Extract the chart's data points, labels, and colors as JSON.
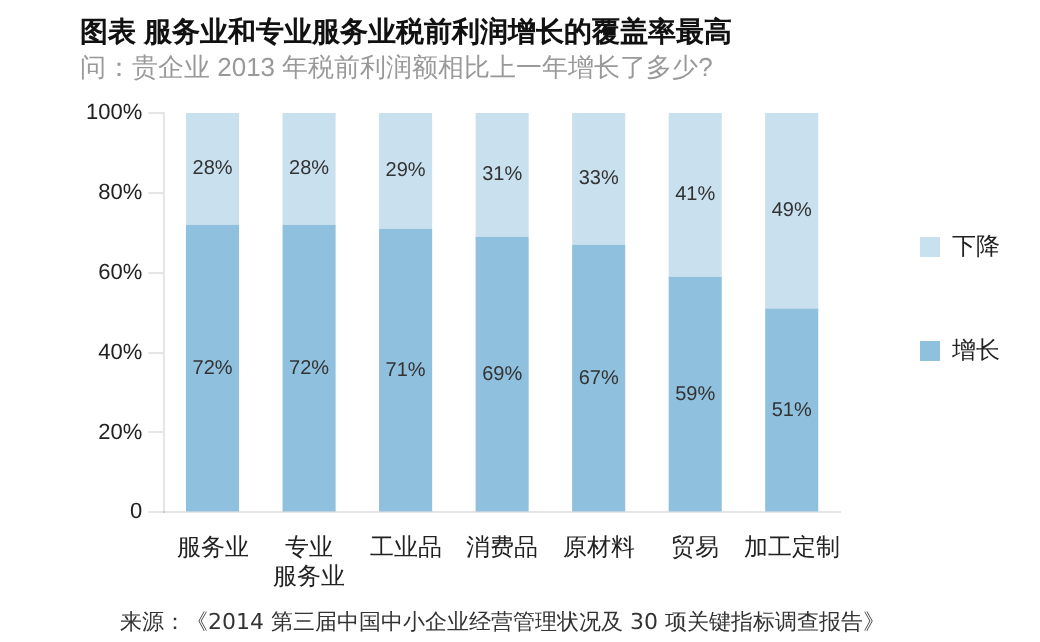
{
  "chart_data": {
    "type": "bar",
    "stacked": true,
    "title": "图表 服务业和专业服务业税前利润增长的覆盖率最高",
    "subtitle": "问：贵企业 2013 年税前利润额相比上一年增长了多少?",
    "categories": [
      "服务业",
      "专业服务业",
      "工业品",
      "消费品",
      "原材料",
      "贸易",
      "加工定制"
    ],
    "series": [
      {
        "name": "增长",
        "color": "#8fc0dd",
        "values": [
          72,
          72,
          71,
          69,
          67,
          59,
          51
        ],
        "value_labels": [
          "72%",
          "72%",
          "71%",
          "69%",
          "67%",
          "59%",
          "51%"
        ]
      },
      {
        "name": "下降",
        "color": "#c9e0ef",
        "values": [
          28,
          28,
          29,
          31,
          33,
          41,
          49
        ],
        "value_labels": [
          "28%",
          "28%",
          "29%",
          "31%",
          "33%",
          "41%",
          "49%"
        ]
      }
    ],
    "ylim": [
      0,
      100
    ],
    "yticks": [
      {
        "value": 0,
        "label": "0"
      },
      {
        "value": 20,
        "label": "20%"
      },
      {
        "value": 40,
        "label": "40%"
      },
      {
        "value": 60,
        "label": "60%"
      },
      {
        "value": 80,
        "label": "80%"
      },
      {
        "value": 100,
        "label": "100%"
      }
    ],
    "legend": "right",
    "grid": false,
    "annotations": [
      "来源：《2014 第三届中国中小企业经营管理状况及 30 项关键指标调查报告》"
    ]
  }
}
